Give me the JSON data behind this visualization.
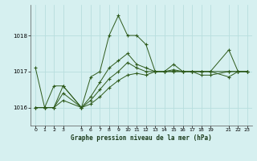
{
  "title": "Graphe pression niveau de la mer (hPa)",
  "bg_color": "#d6f0f0",
  "grid_color": "#b8dede",
  "line_color": "#2d5a1b",
  "xlim": [
    -0.5,
    23.5
  ],
  "ylim": [
    1015.5,
    1018.85
  ],
  "yticks": [
    1016,
    1017,
    1018
  ],
  "xticks": [
    0,
    1,
    2,
    3,
    5,
    6,
    7,
    8,
    9,
    10,
    11,
    12,
    13,
    14,
    15,
    16,
    17,
    18,
    19,
    21,
    22,
    23
  ],
  "series1": {
    "x": [
      0,
      1,
      2,
      3,
      5,
      6,
      7,
      8,
      9,
      10,
      11,
      12,
      13,
      14,
      15,
      16,
      17,
      18,
      19,
      21,
      22,
      23
    ],
    "y": [
      1017.1,
      1016.0,
      1016.6,
      1016.6,
      1016.0,
      1016.85,
      1017.0,
      1018.0,
      1018.55,
      1018.0,
      1018.0,
      1017.75,
      1017.0,
      1017.0,
      1017.2,
      1017.0,
      1017.0,
      1017.0,
      1017.0,
      1017.6,
      1017.0,
      1017.0
    ]
  },
  "series2": {
    "x": [
      0,
      1,
      2,
      3,
      5,
      6,
      7,
      8,
      9,
      10,
      11,
      12,
      13,
      14,
      15,
      16,
      17,
      18,
      19,
      21,
      22,
      23
    ],
    "y": [
      1016.0,
      1016.0,
      1016.0,
      1016.6,
      1016.0,
      1016.3,
      1016.7,
      1017.1,
      1017.3,
      1017.5,
      1017.2,
      1017.1,
      1017.0,
      1017.0,
      1017.0,
      1017.0,
      1017.0,
      1016.9,
      1016.9,
      1017.0,
      1017.0,
      1017.0
    ]
  },
  "series3": {
    "x": [
      0,
      1,
      2,
      3,
      5,
      6,
      7,
      8,
      9,
      10,
      11,
      12,
      13,
      14,
      15,
      16,
      17,
      18,
      19,
      21,
      22,
      23
    ],
    "y": [
      1016.0,
      1016.0,
      1016.0,
      1016.4,
      1016.0,
      1016.2,
      1016.5,
      1016.8,
      1017.0,
      1017.25,
      1017.1,
      1017.0,
      1017.0,
      1017.0,
      1017.05,
      1017.0,
      1017.0,
      1017.0,
      1017.0,
      1016.85,
      1017.0,
      1017.0
    ]
  },
  "series4": {
    "x": [
      0,
      1,
      2,
      3,
      5,
      6,
      7,
      8,
      9,
      10,
      11,
      12,
      13,
      14,
      15,
      16,
      17,
      18,
      19,
      21,
      22,
      23
    ],
    "y": [
      1016.0,
      1016.0,
      1016.0,
      1016.2,
      1016.0,
      1016.1,
      1016.3,
      1016.55,
      1016.75,
      1016.9,
      1016.95,
      1016.9,
      1017.0,
      1017.0,
      1017.0,
      1017.0,
      1017.0,
      1017.0,
      1017.0,
      1017.0,
      1017.0,
      1017.0
    ]
  }
}
